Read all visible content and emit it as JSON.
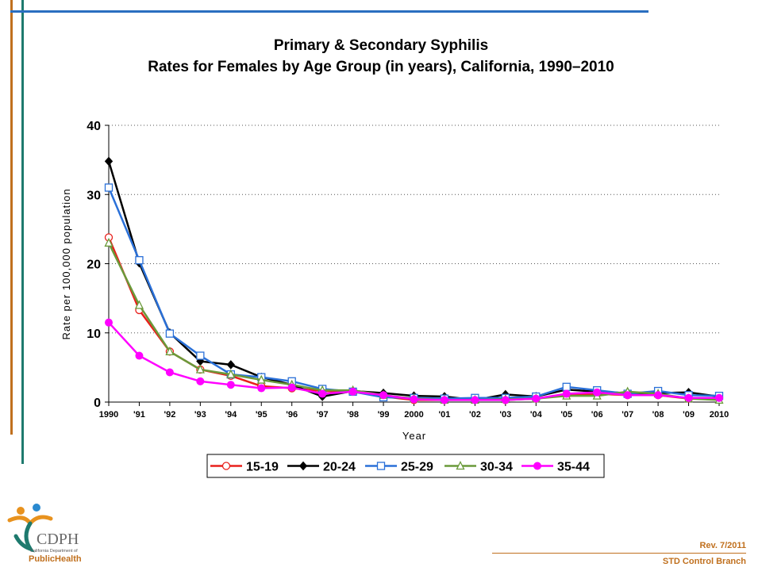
{
  "title_line1": "Primary & Secondary Syphilis",
  "title_line2": "Rates for Females by Age Group (in years), California, 1990–2010",
  "footer": {
    "rev": "Rev. 7/2011",
    "branch": "STD Control Branch"
  },
  "logo": {
    "acronym": "CDPH",
    "org": "California Department of",
    "name": "PublicHealth"
  },
  "colors": {
    "accent_orange": "#c0701e",
    "accent_teal": "#1e7a6e",
    "accent_blue": "#2a6fc0"
  },
  "chart_data": {
    "type": "line",
    "title": "Primary & Secondary Syphilis Rates for Females by Age Group (in years), California, 1990–2010",
    "xlabel": "Year",
    "ylabel": "Rate per 100,000 population",
    "x_ticks": [
      "1990",
      "'91",
      "'92",
      "'93",
      "'94",
      "'95",
      "'96",
      "'97",
      "'98",
      "'99",
      "2000",
      "'01",
      "'02",
      "'03",
      "'04",
      "'05",
      "'06",
      "'07",
      "'08",
      "'09",
      "2010"
    ],
    "y_ticks": [
      "0",
      "10",
      "20",
      "30",
      "40"
    ],
    "ylim": [
      0,
      40
    ],
    "grid": "horizontal dotted",
    "legend_position": "bottom",
    "series": [
      {
        "name": "15-19",
        "color": "#e8201c",
        "marker": "circle-open",
        "values": [
          23.8,
          13.3,
          7.3,
          4.7,
          3.8,
          2.3,
          2.0,
          1.6,
          1.5,
          0.8,
          0.3,
          0.3,
          0.4,
          0.3,
          0.5,
          1.0,
          1.2,
          1.0,
          1.0,
          0.5,
          0.6
        ]
      },
      {
        "name": "20-24",
        "color": "#000000",
        "marker": "diamond",
        "values": [
          34.8,
          20.1,
          10.0,
          5.9,
          5.4,
          3.6,
          2.5,
          0.8,
          1.6,
          1.3,
          0.9,
          0.8,
          0.3,
          1.1,
          0.8,
          1.8,
          1.5,
          1.3,
          1.3,
          1.4,
          0.8
        ]
      },
      {
        "name": "25-29",
        "color": "#2a70d8",
        "marker": "square-open",
        "values": [
          31.0,
          20.5,
          9.9,
          6.7,
          4.0,
          3.6,
          3.0,
          1.9,
          1.5,
          0.7,
          0.6,
          0.5,
          0.6,
          0.6,
          0.8,
          2.2,
          1.7,
          1.2,
          1.6,
          1.0,
          0.9
        ]
      },
      {
        "name": "30-34",
        "color": "#6a9a3a",
        "marker": "triangle-open",
        "values": [
          23.0,
          14.0,
          7.3,
          4.7,
          4.0,
          3.2,
          2.5,
          1.7,
          1.7,
          1.0,
          0.5,
          0.3,
          0.3,
          0.4,
          0.5,
          0.9,
          0.9,
          1.5,
          1.2,
          0.5,
          0.3
        ]
      },
      {
        "name": "35-44",
        "color": "#ff00ff",
        "marker": "circle",
        "values": [
          11.5,
          6.7,
          4.3,
          3.0,
          2.5,
          2.0,
          2.1,
          1.2,
          1.5,
          1.0,
          0.4,
          0.3,
          0.3,
          0.3,
          0.5,
          1.2,
          1.4,
          1.0,
          1.0,
          0.6,
          0.6
        ]
      }
    ]
  }
}
